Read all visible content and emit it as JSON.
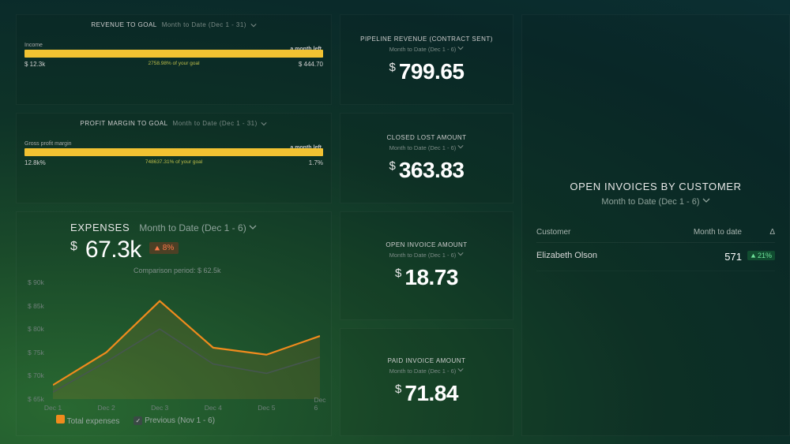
{
  "colors": {
    "bar_fill": "#f2c232",
    "series_total": "#f08b1d",
    "series_prev": "#46564f",
    "delta_up_bg": "rgba(30,140,70,0.35)",
    "delta_up_fg": "#6fe39a",
    "delta_warn_bg": "rgba(200,50,30,0.3)",
    "delta_warn_fg": "#ff7a4a"
  },
  "revenueGoal": {
    "title": "REVENUE TO GOAL",
    "range": "Month to Date (Dec 1 - 31)",
    "metricLabel": "Income",
    "timeLeft": "a month left",
    "fillPercent": 100,
    "leftLabel": "$ 12.3k",
    "centerLabel": "2758.98%  of your goal",
    "rightLabel": "$ 444.70"
  },
  "profitGoal": {
    "title": "PROFIT MARGIN TO GOAL",
    "range": "Month to Date (Dec 1 - 31)",
    "metricLabel": "Gross profit margin",
    "timeLeft": "a month left",
    "fillPercent": 100,
    "leftLabel": "12.8k%",
    "centerLabel": "748637.31%  of your goal",
    "rightLabel": "1.7%"
  },
  "metrics": {
    "pipeline": {
      "title": "PIPELINE REVENUE (CONTRACT SENT)",
      "range": "Month to Date (Dec 1 - 6)",
      "currency": "$",
      "value": "799.65"
    },
    "closedLost": {
      "title": "CLOSED LOST AMOUNT",
      "range": "Month to Date (Dec 1 - 6)",
      "currency": "$",
      "value": "363.83"
    },
    "openInvoice": {
      "title": "OPEN INVOICE AMOUNT",
      "range": "Month to Date (Dec 1 - 6)",
      "currency": "$",
      "value": "18.73"
    },
    "paidInvoice": {
      "title": "PAID INVOICE AMOUNT",
      "range": "Month to Date (Dec 1 - 6)",
      "currency": "$",
      "value": "71.84"
    }
  },
  "expenses": {
    "title": "EXPENSES",
    "range": "Month to Date (Dec 1 - 6)",
    "currency": "$",
    "value": "67.3k",
    "deltaDir": "up",
    "delta": "8%",
    "comparisonLabel": "Comparison period: $ 62.5k",
    "chart": {
      "type": "line",
      "yAxis": {
        "min": 65,
        "max": 90,
        "step": 5,
        "tickLabels": [
          "$ 65k",
          "$ 70k",
          "$ 75k",
          "$ 80k",
          "$ 85k",
          "$ 90k"
        ]
      },
      "xLabels": [
        "Dec 1",
        "Dec 2",
        "Dec 3",
        "Dec 4",
        "Dec 5",
        "Dec 6"
      ],
      "series": [
        {
          "key": "total",
          "label": "Total expenses",
          "color": "#f08b1d",
          "width": 2.2,
          "values": [
            68,
            75,
            86,
            76,
            74.5,
            78.5
          ]
        },
        {
          "key": "prev",
          "label": "Previous (Nov 1 - 6)",
          "color": "#46564f",
          "width": 1.6,
          "values": [
            66.5,
            73,
            80,
            72.5,
            70.5,
            74
          ]
        }
      ]
    }
  },
  "invoices": {
    "title": "OPEN INVOICES BY CUSTOMER",
    "range": "Month to Date (Dec 1 - 6)",
    "columns": [
      "Customer",
      "Month to date",
      "Δ"
    ],
    "rows": [
      {
        "customer": "Elizabeth Olson",
        "value": "571",
        "deltaDir": "up",
        "delta": "21%"
      }
    ]
  }
}
